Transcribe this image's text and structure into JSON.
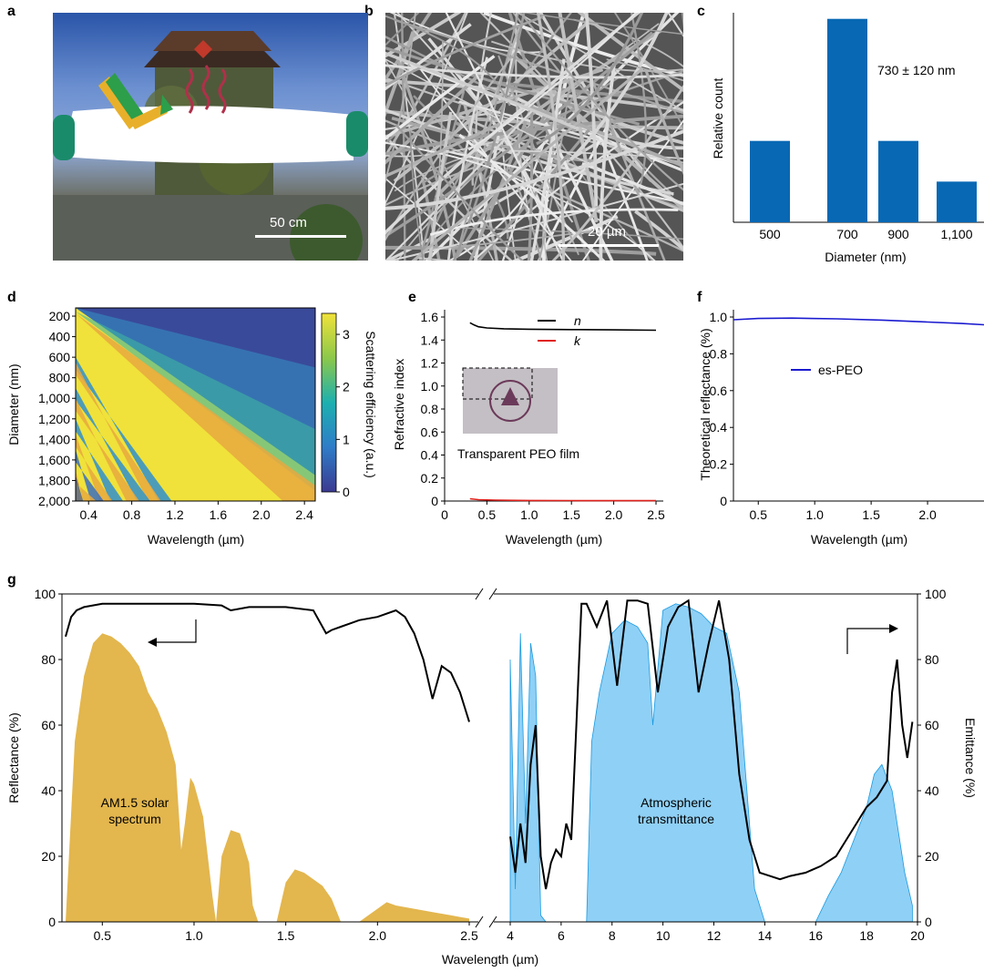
{
  "panels": {
    "a": {
      "letter": "a",
      "scale_bar": "50 cm"
    },
    "b": {
      "letter": "b",
      "scale_bar": "20 µm"
    },
    "c": {
      "letter": "c"
    },
    "d": {
      "letter": "d"
    },
    "e": {
      "letter": "e",
      "inset_caption": "Transparent PEO film"
    },
    "f": {
      "letter": "f"
    },
    "g": {
      "letter": "g"
    }
  },
  "colors": {
    "bar_blue": "#0868b4",
    "solar_gold": "#e3b64e",
    "atmo_blue": "#8fd0f6",
    "atmo_line": "#1a9ae0",
    "n_line": "#000000",
    "k_line": "#e0201b",
    "peo_line": "#1a1ad0"
  },
  "chart_data": [
    {
      "id": "c",
      "type": "bar",
      "categories": [
        "500",
        "700",
        "900",
        "1,100"
      ],
      "values": [
        0.4,
        1.0,
        0.4,
        0.2
      ],
      "annotation": "730 ± 120 nm",
      "xlabel": "Diameter (nm)",
      "ylabel": "Relative count",
      "ylim": [
        0,
        1.03
      ]
    },
    {
      "id": "d",
      "type": "heatmap",
      "xlabel": "Wavelength (µm)",
      "ylabel": "Diameter (nm)",
      "xlim": [
        0.28,
        2.5
      ],
      "ylim": [
        2000,
        120
      ],
      "xticks": [
        0.4,
        0.8,
        1.2,
        1.6,
        2.0,
        2.4
      ],
      "xtick_labels": [
        "0.4",
        "0.8",
        "1.2",
        "1.6",
        "2.0",
        "2.4"
      ],
      "yticks": [
        200,
        400,
        600,
        800,
        1000,
        1200,
        1400,
        1600,
        1800,
        2000
      ],
      "ytick_labels": [
        "200",
        "400",
        "600",
        "800",
        "1,000",
        "1,200",
        "1,400",
        "1,600",
        "1,800",
        "2,000"
      ],
      "colorbar_label": "Scattering efficiency (a.u.)",
      "colorbar_range": [
        0,
        3.4
      ],
      "colorbar_ticks": [
        "0",
        "1",
        "2",
        "3"
      ]
    },
    {
      "id": "e",
      "type": "line",
      "xlabel": "Wavelength (µm)",
      "ylabel": "Refractive index",
      "xlim": [
        0,
        2.5
      ],
      "ylim": [
        0,
        1.6
      ],
      "xticks": [
        "0",
        "0.5",
        "1.0",
        "1.5",
        "2.0",
        "2.5"
      ],
      "yticks": [
        "0",
        "0.2",
        "0.4",
        "0.6",
        "0.8",
        "1.0",
        "1.2",
        "1.4",
        "1.6"
      ],
      "series": [
        {
          "name": "n",
          "x": [
            0.3,
            0.35,
            0.4,
            0.5,
            0.7,
            1.0,
            1.5,
            2.0,
            2.5
          ],
          "values": [
            1.55,
            1.53,
            1.515,
            1.505,
            1.498,
            1.494,
            1.491,
            1.488,
            1.485
          ]
        },
        {
          "name": "k",
          "x": [
            0.3,
            0.4,
            0.6,
            1.0,
            1.5,
            2.0,
            2.5
          ],
          "values": [
            0.02,
            0.012,
            0.008,
            0.005,
            0.004,
            0.003,
            0.003
          ]
        }
      ]
    },
    {
      "id": "f",
      "type": "line",
      "xlabel": "Wavelength (µm)",
      "ylabel": "Theoretical reflectance (%)",
      "xlim": [
        0.28,
        2.5
      ],
      "ylim": [
        0,
        1.0
      ],
      "xticks": [
        "0.5",
        "1.0",
        "1.5",
        "2.0"
      ],
      "yticks": [
        "0",
        "0.2",
        "0.4",
        "0.6",
        "0.8",
        "1.0"
      ],
      "series": [
        {
          "name": "es-PEO",
          "x": [
            0.28,
            0.5,
            0.8,
            1.2,
            1.6,
            2.0,
            2.3,
            2.5
          ],
          "values": [
            0.985,
            0.992,
            0.994,
            0.99,
            0.983,
            0.973,
            0.965,
            0.958
          ]
        }
      ]
    },
    {
      "id": "g",
      "type": "area",
      "xlabel": "Wavelength (µm)",
      "ylabel_left": "Reflectance (%)",
      "ylabel_right": "Emittance (%)",
      "ylim": [
        0,
        100
      ],
      "xticks_left": [
        "0.5",
        "1.0",
        "1.5",
        "2.0",
        "2.5"
      ],
      "xticks_right": [
        "4",
        "6",
        "8",
        "10",
        "12",
        "14",
        "16",
        "18",
        "20"
      ],
      "yticks": [
        "0",
        "20",
        "40",
        "60",
        "80",
        "100"
      ],
      "annotations": [
        "AM1.5 solar spectrum",
        "Atmospheric transmittance"
      ],
      "reflectance": {
        "x": [
          0.3,
          0.33,
          0.36,
          0.4,
          0.5,
          0.6,
          0.8,
          1.0,
          1.15,
          1.2,
          1.3,
          1.5,
          1.65,
          1.7,
          1.72,
          1.75,
          1.8,
          1.9,
          2.0,
          2.1,
          2.15,
          2.2,
          2.25,
          2.3,
          2.35,
          2.4,
          2.45,
          2.5
        ],
        "values": [
          87,
          93,
          95,
          96,
          97,
          97,
          97,
          97,
          96.5,
          95,
          96,
          96,
          95,
          90,
          88,
          89,
          90,
          92,
          93,
          95,
          93,
          88,
          80,
          68,
          78,
          76,
          70,
          61
        ]
      },
      "emittance": {
        "x": [
          4.0,
          4.2,
          4.4,
          4.6,
          4.8,
          5.0,
          5.2,
          5.4,
          5.6,
          5.8,
          6.0,
          6.2,
          6.4,
          6.6,
          6.8,
          7.0,
          7.4,
          7.8,
          8.2,
          8.6,
          9.0,
          9.4,
          9.8,
          10.2,
          10.6,
          11.0,
          11.4,
          11.8,
          12.2,
          12.6,
          13.0,
          13.4,
          13.8,
          14.2,
          14.6,
          15.0,
          15.6,
          16.2,
          16.8,
          17.2,
          17.6,
          18.0,
          18.4,
          18.8,
          19.0,
          19.2,
          19.4,
          19.6,
          19.8
        ],
        "values": [
          26,
          15,
          30,
          18,
          48,
          60,
          20,
          10,
          18,
          22,
          20,
          30,
          25,
          60,
          97,
          97,
          90,
          98,
          72,
          98,
          98,
          97,
          70,
          90,
          96,
          98,
          70,
          85,
          98,
          80,
          45,
          25,
          15,
          14,
          13,
          14,
          15,
          17,
          20,
          25,
          30,
          35,
          38,
          43,
          70,
          80,
          60,
          50,
          61
        ]
      },
      "solar_spectrum": {
        "x": [
          0.3,
          0.35,
          0.4,
          0.45,
          0.5,
          0.55,
          0.6,
          0.65,
          0.7,
          0.75,
          0.8,
          0.85,
          0.9,
          0.93,
          0.95,
          0.98,
          1.0,
          1.05,
          1.1,
          1.12,
          1.15,
          1.2,
          1.25,
          1.3,
          1.32,
          1.35,
          1.4,
          1.45,
          1.5,
          1.55,
          1.6,
          1.7,
          1.75,
          1.8,
          1.85,
          1.9,
          1.95,
          2.0,
          2.05,
          2.1,
          2.2,
          2.3,
          2.4,
          2.5
        ],
        "values": [
          0,
          55,
          75,
          85,
          88,
          87,
          85,
          82,
          78,
          70,
          65,
          58,
          48,
          22,
          30,
          44,
          42,
          32,
          8,
          0,
          20,
          28,
          27,
          18,
          5,
          0,
          0,
          0,
          12,
          16,
          15,
          11,
          7,
          0,
          0,
          0,
          2,
          4,
          6,
          5,
          4,
          3,
          2,
          1
        ]
      },
      "atmospheric": {
        "x": [
          4.0,
          4.2,
          4.4,
          4.6,
          4.8,
          5.0,
          5.2,
          5.4,
          5.6,
          6.0,
          6.5,
          7.0,
          7.2,
          7.5,
          8.0,
          8.5,
          9.0,
          9.4,
          9.6,
          10.0,
          10.5,
          11.0,
          11.5,
          12.0,
          12.5,
          13.0,
          13.3,
          13.6,
          14.0,
          14.5,
          15.0,
          15.5,
          16.0,
          16.5,
          17.0,
          17.5,
          18.0,
          18.3,
          18.6,
          19.0,
          19.5,
          19.8
        ],
        "values": [
          80,
          10,
          88,
          30,
          85,
          75,
          2,
          0,
          0,
          0,
          0,
          0,
          55,
          70,
          88,
          92,
          90,
          85,
          60,
          95,
          97,
          96,
          94,
          90,
          88,
          70,
          40,
          10,
          0,
          0,
          0,
          0,
          0,
          8,
          15,
          25,
          35,
          45,
          48,
          40,
          15,
          5
        ]
      }
    }
  ]
}
